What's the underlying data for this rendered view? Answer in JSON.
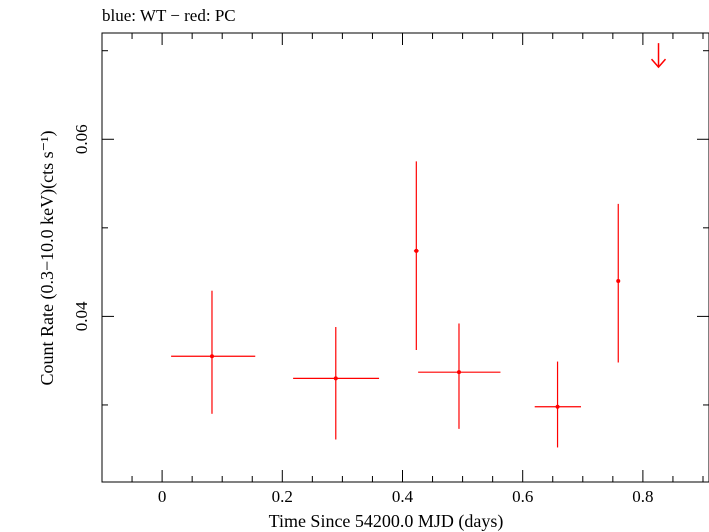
{
  "chart_data": {
    "type": "scatter",
    "title": "blue: WT − red: PC",
    "xlabel": "Time Since 54200.0 MJD (days)",
    "ylabel": "Count Rate (0.3−10.0 keV)(cts s⁻¹)",
    "xlim": [
      -0.1,
      0.91
    ],
    "ylim": [
      0.0213,
      0.072
    ],
    "x_ticks": [
      {
        "value": 0,
        "label": "0"
      },
      {
        "value": 0.2,
        "label": "0.2"
      },
      {
        "value": 0.4,
        "label": "0.4"
      },
      {
        "value": 0.6,
        "label": "0.6"
      },
      {
        "value": 0.8,
        "label": "0.8"
      }
    ],
    "x_minor_step": 0.05,
    "y_ticks": [
      {
        "value": 0.04,
        "label": "0.04"
      },
      {
        "value": 0.06,
        "label": "0.06"
      }
    ],
    "y_minor_step": 0.01,
    "grid": false,
    "series": [
      {
        "mode": "PC",
        "color": "#ff0000",
        "points": [
          {
            "x": 0.083,
            "y": 0.0355,
            "xerr_low": 0.068,
            "xerr_high": 0.072,
            "y_low": 0.029,
            "y_high": 0.0429
          },
          {
            "x": 0.289,
            "y": 0.033,
            "xerr_low": 0.071,
            "xerr_high": 0.072,
            "y_low": 0.0261,
            "y_high": 0.0388
          },
          {
            "x": 0.423,
            "y": 0.0474,
            "xerr_low": 0.004,
            "xerr_high": 0.004,
            "y_low": 0.0362,
            "y_high": 0.0575
          },
          {
            "x": 0.494,
            "y": 0.0337,
            "xerr_low": 0.068,
            "xerr_high": 0.069,
            "y_low": 0.0273,
            "y_high": 0.0392
          },
          {
            "x": 0.658,
            "y": 0.0298,
            "xerr_low": 0.038,
            "xerr_high": 0.039,
            "y_low": 0.0252,
            "y_high": 0.0349
          },
          {
            "x": 0.759,
            "y": 0.044,
            "xerr_low": 0.003,
            "xerr_high": 0.003,
            "y_low": 0.0348,
            "y_high": 0.0527
          }
        ],
        "upper_limits": [
          {
            "x": 0.826,
            "y": 0.0695
          }
        ]
      }
    ]
  }
}
